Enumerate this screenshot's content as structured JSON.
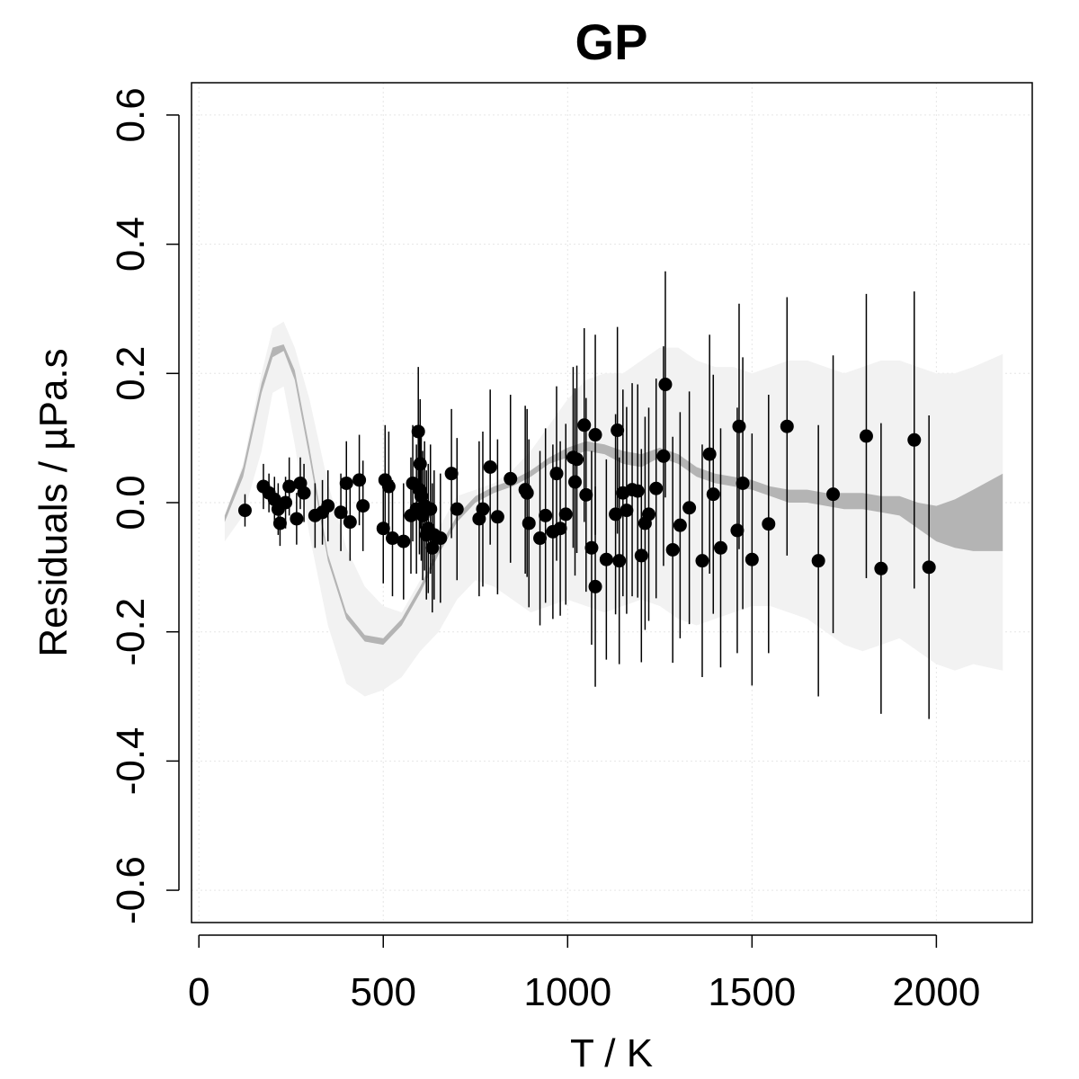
{
  "chart_data": {
    "type": "scatter",
    "title": "GP",
    "xlabel": "T / K",
    "ylabel": "Residuals / µPa.s",
    "xlim": [
      -20,
      2260
    ],
    "ylim": [
      -0.65,
      0.65
    ],
    "xticks": [
      0,
      500,
      1000,
      1500,
      2000
    ],
    "yticks": [
      -0.6,
      -0.4,
      -0.2,
      0.0,
      0.2,
      0.4,
      0.6
    ],
    "xtick_labels": [
      "0",
      "500",
      "1000",
      "1500",
      "2000"
    ],
    "ytick_labels": [
      "-0.6",
      "-0.4",
      "-0.2",
      "0.0",
      "0.2",
      "0.4",
      "0.6"
    ],
    "grid": true,
    "colors": {
      "points": "#000000",
      "band_outer": "#f2f2f2",
      "band_inner": "#b4b4b4",
      "grid": "#e6e6e6"
    },
    "band_outer": {
      "x": [
        70,
        120,
        170,
        200,
        230,
        260,
        300,
        350,
        400,
        450,
        500,
        550,
        600,
        650,
        700,
        750,
        800,
        850,
        900,
        950,
        1000,
        1050,
        1100,
        1150,
        1200,
        1250,
        1300,
        1350,
        1400,
        1450,
        1500,
        1550,
        1600,
        1650,
        1700,
        1750,
        1800,
        1850,
        1900,
        1950,
        2000,
        2050,
        2100,
        2180
      ],
      "lower": [
        -0.06,
        -0.02,
        0.08,
        0.17,
        0.18,
        0.09,
        -0.05,
        -0.19,
        -0.28,
        -0.3,
        -0.29,
        -0.27,
        -0.23,
        -0.2,
        -0.15,
        -0.12,
        -0.13,
        -0.15,
        -0.17,
        -0.16,
        -0.15,
        -0.16,
        -0.17,
        -0.16,
        -0.15,
        -0.16,
        -0.18,
        -0.19,
        -0.18,
        -0.17,
        -0.16,
        -0.16,
        -0.17,
        -0.18,
        -0.2,
        -0.22,
        -0.23,
        -0.22,
        -0.21,
        -0.23,
        -0.25,
        -0.26,
        -0.25,
        -0.26
      ],
      "upper": [
        -0.02,
        0.06,
        0.2,
        0.27,
        0.28,
        0.24,
        0.16,
        0.03,
        -0.07,
        -0.13,
        -0.16,
        -0.17,
        -0.12,
        -0.04,
        0.01,
        0.02,
        0.03,
        0.05,
        0.08,
        0.12,
        0.16,
        0.19,
        0.2,
        0.2,
        0.22,
        0.24,
        0.24,
        0.22,
        0.21,
        0.21,
        0.2,
        0.21,
        0.22,
        0.22,
        0.21,
        0.2,
        0.21,
        0.22,
        0.22,
        0.21,
        0.2,
        0.2,
        0.21,
        0.23
      ]
    },
    "band_inner": {
      "x": [
        70,
        120,
        170,
        200,
        230,
        260,
        300,
        350,
        400,
        450,
        500,
        550,
        600,
        650,
        700,
        750,
        800,
        850,
        900,
        950,
        1000,
        1050,
        1100,
        1150,
        1200,
        1250,
        1300,
        1350,
        1400,
        1450,
        1500,
        1550,
        1600,
        1650,
        1700,
        1750,
        1800,
        1850,
        1900,
        1950,
        2000,
        2050,
        2100,
        2180
      ],
      "lower": [
        -0.03,
        0.04,
        0.17,
        0.225,
        0.235,
        0.19,
        0.07,
        -0.09,
        -0.18,
        -0.215,
        -0.22,
        -0.19,
        -0.14,
        -0.08,
        -0.03,
        0.0,
        0.015,
        0.025,
        0.04,
        0.06,
        0.07,
        0.08,
        0.075,
        0.06,
        0.055,
        0.07,
        0.06,
        0.04,
        0.03,
        0.025,
        0.02,
        0.01,
        0.0,
        0.0,
        -0.005,
        -0.01,
        -0.01,
        -0.015,
        -0.02,
        -0.04,
        -0.06,
        -0.07,
        -0.075,
        -0.075
      ],
      "upper": [
        -0.02,
        0.055,
        0.185,
        0.24,
        0.245,
        0.205,
        0.085,
        -0.08,
        -0.17,
        -0.205,
        -0.21,
        -0.18,
        -0.13,
        -0.07,
        -0.02,
        0.01,
        0.025,
        0.035,
        0.05,
        0.07,
        0.085,
        0.095,
        0.09,
        0.08,
        0.075,
        0.085,
        0.075,
        0.055,
        0.045,
        0.04,
        0.035,
        0.025,
        0.02,
        0.02,
        0.015,
        0.015,
        0.015,
        0.01,
        0.01,
        0.0,
        -0.005,
        0.005,
        0.02,
        0.045
      ]
    },
    "points": [
      {
        "x": 125,
        "y": -0.012,
        "err": 0.025
      },
      {
        "x": 175,
        "y": 0.025,
        "err": 0.035
      },
      {
        "x": 190,
        "y": 0.015,
        "err": 0.03
      },
      {
        "x": 205,
        "y": 0.005,
        "err": 0.035
      },
      {
        "x": 215,
        "y": -0.01,
        "err": 0.04
      },
      {
        "x": 220,
        "y": -0.032,
        "err": 0.035
      },
      {
        "x": 235,
        "y": 0.0,
        "err": 0.04
      },
      {
        "x": 245,
        "y": 0.025,
        "err": 0.045
      },
      {
        "x": 265,
        "y": -0.025,
        "err": 0.04
      },
      {
        "x": 275,
        "y": 0.03,
        "err": 0.04
      },
      {
        "x": 285,
        "y": 0.015,
        "err": 0.045
      },
      {
        "x": 315,
        "y": -0.02,
        "err": 0.05
      },
      {
        "x": 335,
        "y": -0.015,
        "err": 0.05
      },
      {
        "x": 350,
        "y": -0.005,
        "err": 0.055
      },
      {
        "x": 385,
        "y": -0.015,
        "err": 0.06
      },
      {
        "x": 400,
        "y": 0.03,
        "err": 0.065
      },
      {
        "x": 410,
        "y": -0.03,
        "err": 0.06
      },
      {
        "x": 435,
        "y": 0.035,
        "err": 0.07
      },
      {
        "x": 445,
        "y": -0.005,
        "err": 0.07
      },
      {
        "x": 500,
        "y": -0.04,
        "err": 0.085
      },
      {
        "x": 505,
        "y": 0.035,
        "err": 0.085
      },
      {
        "x": 515,
        "y": 0.025,
        "err": 0.085
      },
      {
        "x": 525,
        "y": -0.055,
        "err": 0.09
      },
      {
        "x": 555,
        "y": -0.06,
        "err": 0.09
      },
      {
        "x": 575,
        "y": -0.02,
        "err": 0.09
      },
      {
        "x": 580,
        "y": 0.03,
        "err": 0.09
      },
      {
        "x": 590,
        "y": -0.01,
        "err": 0.1
      },
      {
        "x": 595,
        "y": 0.11,
        "err": 0.1
      },
      {
        "x": 598,
        "y": 0.02,
        "err": 0.1
      },
      {
        "x": 600,
        "y": 0.06,
        "err": 0.1
      },
      {
        "x": 603,
        "y": 0.01,
        "err": 0.1
      },
      {
        "x": 607,
        "y": -0.02,
        "err": 0.1
      },
      {
        "x": 612,
        "y": -0.005,
        "err": 0.1
      },
      {
        "x": 617,
        "y": -0.05,
        "err": 0.1
      },
      {
        "x": 622,
        "y": -0.04,
        "err": 0.1
      },
      {
        "x": 628,
        "y": -0.01,
        "err": 0.1
      },
      {
        "x": 633,
        "y": -0.07,
        "err": 0.1
      },
      {
        "x": 638,
        "y": -0.05,
        "err": 0.1
      },
      {
        "x": 655,
        "y": -0.055,
        "err": 0.1
      },
      {
        "x": 685,
        "y": 0.045,
        "err": 0.1
      },
      {
        "x": 700,
        "y": -0.01,
        "err": 0.11
      },
      {
        "x": 760,
        "y": -0.025,
        "err": 0.12
      },
      {
        "x": 770,
        "y": -0.01,
        "err": 0.12
      },
      {
        "x": 790,
        "y": 0.055,
        "err": 0.12
      },
      {
        "x": 810,
        "y": -0.022,
        "err": 0.12
      },
      {
        "x": 845,
        "y": 0.037,
        "err": 0.13
      },
      {
        "x": 885,
        "y": 0.02,
        "err": 0.13
      },
      {
        "x": 890,
        "y": 0.015,
        "err": 0.13
      },
      {
        "x": 895,
        "y": -0.032,
        "err": 0.13
      },
      {
        "x": 925,
        "y": -0.055,
        "err": 0.135
      },
      {
        "x": 940,
        "y": -0.02,
        "err": 0.135
      },
      {
        "x": 960,
        "y": -0.045,
        "err": 0.135
      },
      {
        "x": 970,
        "y": 0.045,
        "err": 0.135
      },
      {
        "x": 980,
        "y": -0.04,
        "err": 0.135
      },
      {
        "x": 995,
        "y": -0.018,
        "err": 0.14
      },
      {
        "x": 1015,
        "y": 0.07,
        "err": 0.14
      },
      {
        "x": 1020,
        "y": 0.032,
        "err": 0.145
      },
      {
        "x": 1025,
        "y": 0.067,
        "err": 0.145
      },
      {
        "x": 1045,
        "y": 0.12,
        "err": 0.15
      },
      {
        "x": 1050,
        "y": 0.012,
        "err": 0.15
      },
      {
        "x": 1065,
        "y": -0.07,
        "err": 0.15
      },
      {
        "x": 1075,
        "y": 0.105,
        "err": 0.155
      },
      {
        "x": 1075,
        "y": -0.13,
        "err": 0.155
      },
      {
        "x": 1105,
        "y": -0.088,
        "err": 0.155
      },
      {
        "x": 1130,
        "y": -0.018,
        "err": 0.155
      },
      {
        "x": 1135,
        "y": 0.112,
        "err": 0.16
      },
      {
        "x": 1140,
        "y": -0.09,
        "err": 0.16
      },
      {
        "x": 1150,
        "y": 0.015,
        "err": 0.16
      },
      {
        "x": 1160,
        "y": -0.012,
        "err": 0.16
      },
      {
        "x": 1175,
        "y": 0.02,
        "err": 0.165
      },
      {
        "x": 1190,
        "y": 0.018,
        "err": 0.165
      },
      {
        "x": 1200,
        "y": -0.082,
        "err": 0.165
      },
      {
        "x": 1210,
        "y": -0.032,
        "err": 0.165
      },
      {
        "x": 1220,
        "y": -0.018,
        "err": 0.165
      },
      {
        "x": 1240,
        "y": 0.022,
        "err": 0.17
      },
      {
        "x": 1260,
        "y": 0.072,
        "err": 0.17
      },
      {
        "x": 1265,
        "y": 0.183,
        "err": 0.175
      },
      {
        "x": 1285,
        "y": -0.073,
        "err": 0.175
      },
      {
        "x": 1305,
        "y": -0.035,
        "err": 0.175
      },
      {
        "x": 1330,
        "y": -0.008,
        "err": 0.18
      },
      {
        "x": 1365,
        "y": -0.09,
        "err": 0.18
      },
      {
        "x": 1385,
        "y": 0.075,
        "err": 0.185
      },
      {
        "x": 1395,
        "y": 0.013,
        "err": 0.185
      },
      {
        "x": 1415,
        "y": -0.07,
        "err": 0.185
      },
      {
        "x": 1460,
        "y": -0.043,
        "err": 0.19
      },
      {
        "x": 1465,
        "y": 0.118,
        "err": 0.19
      },
      {
        "x": 1475,
        "y": 0.03,
        "err": 0.195
      },
      {
        "x": 1500,
        "y": -0.088,
        "err": 0.195
      },
      {
        "x": 1545,
        "y": -0.033,
        "err": 0.2
      },
      {
        "x": 1595,
        "y": 0.118,
        "err": 0.2
      },
      {
        "x": 1680,
        "y": -0.09,
        "err": 0.21
      },
      {
        "x": 1720,
        "y": 0.013,
        "err": 0.215
      },
      {
        "x": 1810,
        "y": 0.103,
        "err": 0.22
      },
      {
        "x": 1850,
        "y": -0.102,
        "err": 0.225
      },
      {
        "x": 1940,
        "y": 0.097,
        "err": 0.23
      },
      {
        "x": 1980,
        "y": -0.1,
        "err": 0.235
      }
    ]
  }
}
